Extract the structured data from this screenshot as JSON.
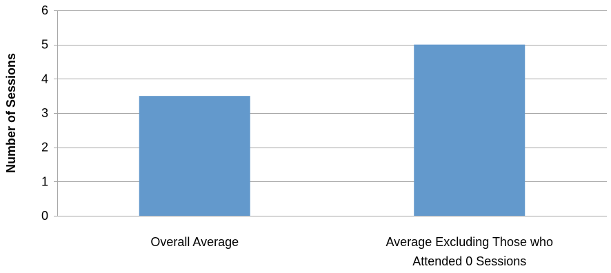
{
  "chart_data": {
    "type": "bar",
    "categories": [
      "Overall Average",
      "Average Excluding Those who Attended 0 Sessions"
    ],
    "category_label_lines": [
      [
        "Overall Average"
      ],
      [
        "Average Excluding Those who",
        "Attended 0 Sessions"
      ]
    ],
    "values": [
      3.5,
      5
    ],
    "title": "",
    "xlabel": "",
    "ylabel": "Number of Sessions",
    "ylim": [
      0,
      6
    ],
    "yticks": [
      0,
      1,
      2,
      3,
      4,
      5,
      6
    ],
    "grid": true,
    "legend": "none",
    "bar_color": "#6399CC",
    "grid_color": "#A6A6A6"
  }
}
